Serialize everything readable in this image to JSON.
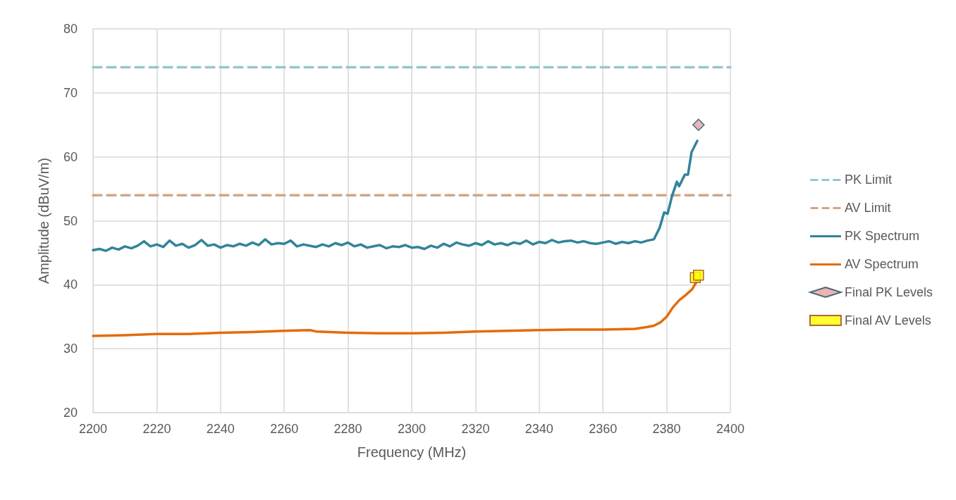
{
  "chart_data": {
    "type": "line",
    "xlabel": "Frequency (MHz)",
    "ylabel": "Amplitude (dBuV/m)",
    "xlim": [
      2200,
      2400
    ],
    "xticks": [
      2200,
      2220,
      2240,
      2260,
      2280,
      2300,
      2320,
      2340,
      2360,
      2380,
      2400
    ],
    "ylim": [
      20,
      80
    ],
    "yticks": [
      20,
      30,
      40,
      50,
      60,
      70,
      80
    ],
    "grid": true,
    "legend": "right",
    "series": [
      {
        "name": "PK Limit",
        "color": "#93c6d2",
        "line_style": "dashed",
        "marker": "none",
        "x": [
          2200,
          2400
        ],
        "values": [
          74,
          74
        ]
      },
      {
        "name": "AV Limit",
        "color": "#d5a582",
        "line_style": "dashed",
        "marker": "none",
        "x": [
          2200,
          2400
        ],
        "values": [
          54,
          54
        ]
      },
      {
        "name": "PK Spectrum",
        "color": "#31849b",
        "line_style": "solid",
        "marker": "none",
        "x": [
          2200,
          2202,
          2204,
          2206,
          2208,
          2210,
          2212,
          2214,
          2216,
          2218,
          2220,
          2222,
          2224,
          2226,
          2228,
          2230,
          2232,
          2234,
          2236,
          2238,
          2240,
          2242,
          2244,
          2246,
          2248,
          2250,
          2252,
          2254,
          2256,
          2258,
          2260,
          2262,
          2264,
          2266,
          2268,
          2270,
          2272,
          2274,
          2276,
          2278,
          2280,
          2282,
          2284,
          2286,
          2288,
          2290,
          2292,
          2294,
          2296,
          2298,
          2300,
          2302,
          2304,
          2306,
          2308,
          2310,
          2312,
          2314,
          2316,
          2318,
          2320,
          2322,
          2324,
          2326,
          2328,
          2330,
          2332,
          2334,
          2336,
          2338,
          2340,
          2342,
          2344,
          2346,
          2348,
          2350,
          2352,
          2354,
          2356,
          2358,
          2360,
          2362,
          2364,
          2366,
          2368,
          2370,
          2372,
          2374,
          2376,
          2377.8,
          2379.2,
          2380.3,
          2381.7,
          2383.2,
          2383.9,
          2385.7,
          2386.7,
          2387.8,
          2389.6
        ],
        "values": [
          45.4,
          45.6,
          45.3,
          45.8,
          45.5,
          46.0,
          45.7,
          46.1,
          46.8,
          46.0,
          46.3,
          45.9,
          46.9,
          46.1,
          46.4,
          45.8,
          46.2,
          47.0,
          46.1,
          46.3,
          45.8,
          46.2,
          46.0,
          46.4,
          46.1,
          46.6,
          46.2,
          47.1,
          46.3,
          46.5,
          46.4,
          46.9,
          46.0,
          46.3,
          46.1,
          45.9,
          46.3,
          46.0,
          46.5,
          46.2,
          46.6,
          46.0,
          46.3,
          45.8,
          46.0,
          46.2,
          45.7,
          46.0,
          45.9,
          46.2,
          45.8,
          45.9,
          45.6,
          46.1,
          45.8,
          46.4,
          46.0,
          46.6,
          46.3,
          46.1,
          46.5,
          46.2,
          46.8,
          46.3,
          46.5,
          46.2,
          46.6,
          46.4,
          46.9,
          46.3,
          46.7,
          46.5,
          47.0,
          46.6,
          46.8,
          46.9,
          46.6,
          46.8,
          46.5,
          46.4,
          46.6,
          46.8,
          46.4,
          46.7,
          46.5,
          46.8,
          46.6,
          46.9,
          47.1,
          48.9,
          51.3,
          51.1,
          53.9,
          56.1,
          55.4,
          57.2,
          57.2,
          60.7,
          62.5
        ]
      },
      {
        "name": "AV Spectrum",
        "color": "#e46c0a",
        "line_style": "solid",
        "marker": "none",
        "x": [
          2200,
          2210,
          2220,
          2230,
          2240,
          2250,
          2260,
          2268,
          2270,
          2280,
          2290,
          2300,
          2310,
          2320,
          2330,
          2340,
          2350,
          2360,
          2370,
          2374,
          2376,
          2378,
          2380,
          2382,
          2384,
          2386,
          2388,
          2390
        ],
        "values": [
          32.0,
          32.1,
          32.3,
          32.3,
          32.5,
          32.6,
          32.8,
          32.9,
          32.7,
          32.5,
          32.4,
          32.4,
          32.5,
          32.7,
          32.8,
          32.9,
          33.0,
          33.0,
          33.1,
          33.4,
          33.6,
          34.1,
          35.0,
          36.5,
          37.6,
          38.4,
          39.3,
          41.0
        ]
      },
      {
        "name": "Final PK Levels",
        "type": "scatter",
        "color": "#e6a3a3",
        "marker": "diamond",
        "x": [
          2390
        ],
        "values": [
          65
        ]
      },
      {
        "name": "Final AV Levels",
        "type": "scatter",
        "color": "#ffff00",
        "marker": "square",
        "x": [
          2389,
          2390
        ],
        "values": [
          41.1,
          41.5
        ]
      }
    ]
  }
}
